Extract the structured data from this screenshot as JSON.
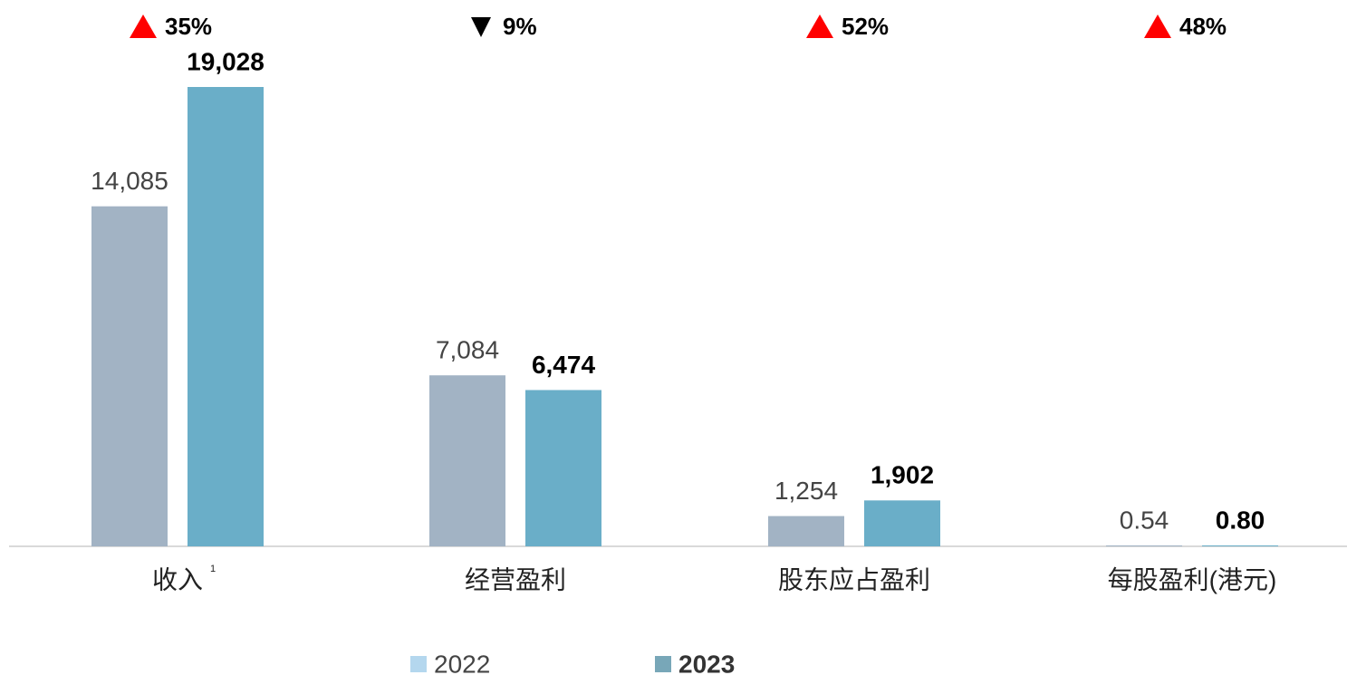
{
  "chart_data": {
    "type": "bar",
    "categories": [
      "收入",
      "经营盈利",
      "股东应占盈利",
      "每股盈利(港元)"
    ],
    "category_notes": [
      "1",
      null,
      null,
      null
    ],
    "change_labels": [
      "35%",
      "9%",
      "52%",
      "48%"
    ],
    "change_directions": [
      "up",
      "down",
      "up",
      "up"
    ],
    "series": [
      {
        "name": "2022",
        "color": "#a2b3c4",
        "legend_color": "#b4d7ee",
        "values": [
          14085,
          7084,
          1254,
          0.54
        ],
        "value_labels": [
          "14,085",
          "7,084",
          "1,254",
          "0.54"
        ]
      },
      {
        "name": "2023",
        "color": "#6aaec8",
        "legend_color": "#78a7b8",
        "values": [
          19028,
          6474,
          1902,
          0.8
        ],
        "value_labels": [
          "19,028",
          "6,474",
          "1,902",
          "0.80"
        ]
      }
    ]
  }
}
